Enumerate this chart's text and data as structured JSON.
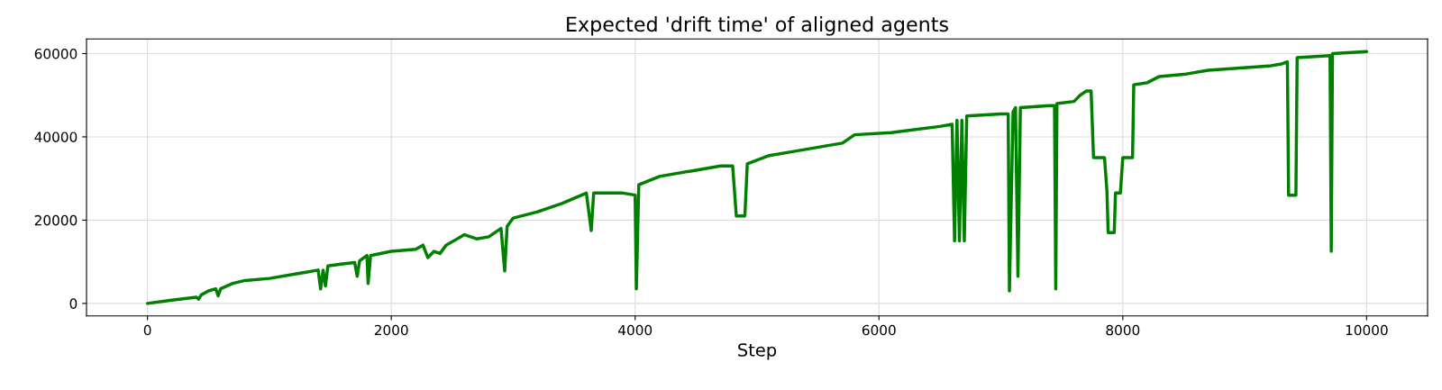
{
  "chart_data": {
    "type": "line",
    "title": "Expected 'drift time' of aligned agents",
    "xlabel": "Step",
    "xlim": [
      -500,
      10500
    ],
    "ylim": [
      -3000,
      63500
    ],
    "xticks": [
      0,
      2000,
      4000,
      6000,
      8000,
      10000
    ],
    "yticks": [
      0,
      20000,
      40000,
      60000
    ],
    "grid": true,
    "series": [
      {
        "color": "#008000",
        "x": [
          0,
          200,
          400,
          420,
          440,
          500,
          560,
          580,
          600,
          700,
          800,
          1000,
          1200,
          1300,
          1400,
          1420,
          1440,
          1460,
          1480,
          1600,
          1700,
          1720,
          1740,
          1800,
          1810,
          1830,
          2000,
          2200,
          2260,
          2280,
          2300,
          2350,
          2400,
          2450,
          2600,
          2700,
          2800,
          2900,
          2930,
          2950,
          3000,
          3200,
          3400,
          3600,
          3640,
          3660,
          3900,
          4000,
          4010,
          4030,
          4200,
          4500,
          4700,
          4800,
          4830,
          4900,
          4920,
          5100,
          5300,
          5700,
          5800,
          6100,
          6500,
          6600,
          6620,
          6640,
          6660,
          6680,
          6700,
          6720,
          7000,
          7060,
          7070,
          7100,
          7120,
          7140,
          7160,
          7400,
          7440,
          7450,
          7460,
          7600,
          7650,
          7700,
          7740,
          7760,
          7850,
          7870,
          7880,
          7930,
          7940,
          7980,
          8000,
          8080,
          8090,
          8200,
          8300,
          8500,
          8700,
          9200,
          9300,
          9350,
          9360,
          9420,
          9430,
          9700,
          9710,
          9720,
          10000
        ],
        "values": [
          0,
          800,
          1500,
          1000,
          2000,
          3000,
          3500,
          1800,
          3500,
          4800,
          5500,
          6000,
          7000,
          7500,
          8000,
          3500,
          8000,
          4200,
          9000,
          9500,
          9800,
          6500,
          10200,
          11500,
          4800,
          11500,
          12500,
          13000,
          14000,
          12500,
          11000,
          12500,
          12000,
          14000,
          16500,
          15500,
          16000,
          18000,
          7800,
          18500,
          20500,
          22000,
          24000,
          26500,
          17500,
          26500,
          26500,
          26000,
          3500,
          28500,
          30500,
          32000,
          33000,
          33000,
          21000,
          21000,
          33500,
          35500,
          36500,
          38500,
          40500,
          41000,
          42500,
          43000,
          15000,
          44000,
          15000,
          44000,
          15000,
          45000,
          45500,
          45500,
          3000,
          46000,
          47000,
          6500,
          47000,
          47500,
          47500,
          3500,
          48000,
          48500,
          50000,
          51000,
          51000,
          35000,
          35000,
          27000,
          17000,
          17000,
          26500,
          26500,
          35000,
          35000,
          52500,
          53000,
          54500,
          55000,
          56000,
          57000,
          57500,
          58000,
          26000,
          26000,
          59000,
          59500,
          12500,
          60000,
          60500
        ]
      }
    ]
  }
}
